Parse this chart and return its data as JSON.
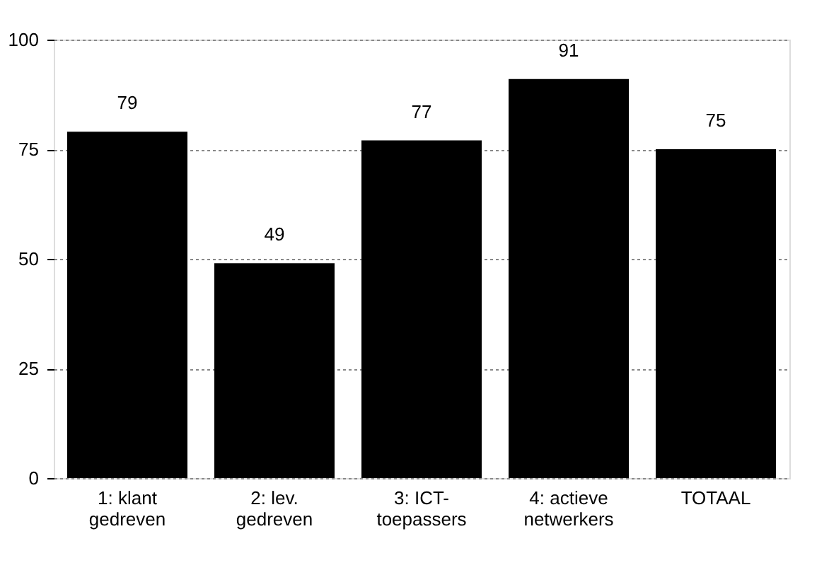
{
  "chart_data": {
    "type": "bar",
    "categories": [
      "1: klant\ngedreven",
      "2: lev.\ngedreven",
      "3: ICT-\ntoepassers",
      "4: actieve\nnetwerkers",
      "TOTAAL"
    ],
    "values": [
      79,
      49,
      77,
      91,
      75
    ],
    "color": "#000000",
    "ylim": [
      0,
      100
    ],
    "yticks": [
      0,
      25,
      50,
      75,
      100
    ],
    "grid": "y",
    "data_labels": true
  }
}
